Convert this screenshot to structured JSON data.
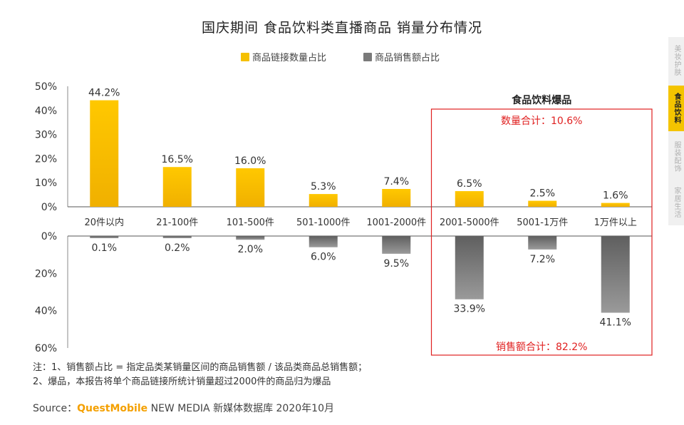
{
  "title": "国庆期间 食品饮料类直播商品 销量分布情况",
  "legend": {
    "series_a": "商品链接数量占比",
    "series_b": "商品销售额占比"
  },
  "colors": {
    "series_a": "#f5c000",
    "series_b": "#7a7a7a",
    "highlight_box": "#e02020",
    "highlight_text": "#e02020",
    "active_tab": "#f4c400"
  },
  "highlight": {
    "title": "食品饮料爆品",
    "top_label": "数量合计：10.6%",
    "bottom_label": "销售额合计：82.2%"
  },
  "side_tabs": [
    {
      "label": "美妆护肤",
      "active": false
    },
    {
      "label": "食品饮料",
      "active": true
    },
    {
      "label": "服装配饰",
      "active": false
    },
    {
      "label": "家居生活",
      "active": false
    }
  ],
  "notes": [
    "注：1、销售额占比 = 指定品类某销量区间的商品销售额 / 该品类商品总销售额；",
    "2、爆品，本报告将单个商品链接所统计销量超过2000件的商品归为爆品"
  ],
  "source": {
    "prefix": "Source：",
    "brand": "QuestMobile",
    "suffix": " NEW MEDIA 新媒体数据库 2020年10月"
  },
  "chart_data": {
    "type": "bar",
    "categories": [
      "20件以内",
      "21-100件",
      "101-500件",
      "501-1000件",
      "1001-2000件",
      "2001-5000件",
      "5001-1万件",
      "1万件以上"
    ],
    "series": [
      {
        "name": "商品链接数量占比",
        "values": [
          44.2,
          16.5,
          16.0,
          5.3,
          7.4,
          6.5,
          2.5,
          1.6
        ],
        "labels": [
          "44.2%",
          "16.5%",
          "16.0%",
          "5.3%",
          "7.4%",
          "6.5%",
          "2.5%",
          "1.6%"
        ],
        "ylim": [
          0,
          50
        ],
        "yticks": [
          "50%",
          "40%",
          "30%",
          "20%",
          "10%",
          "0%"
        ]
      },
      {
        "name": "商品销售额占比",
        "values": [
          0.1,
          0.2,
          2.0,
          6.0,
          9.5,
          33.9,
          7.2,
          41.1
        ],
        "labels": [
          "0.1%",
          "0.2%",
          "2.0%",
          "6.0%",
          "9.5%",
          "33.9%",
          "7.2%",
          "41.1%"
        ],
        "ylim": [
          0,
          60
        ],
        "yticks": [
          "0%",
          "20%",
          "40%",
          "60%"
        ]
      }
    ],
    "highlighted_categories": [
      "2001-5000件",
      "5001-1万件",
      "1万件以上"
    ]
  }
}
